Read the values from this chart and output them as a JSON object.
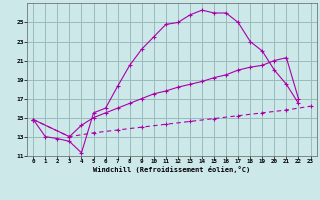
{
  "xlabel": "Windchill (Refroidissement éolien,°C)",
  "ylabel": "",
  "bg_color": "#cce8e8",
  "grid_color": "#99bbbb",
  "line_color": "#aa00aa",
  "xlim": [
    -0.5,
    23.5
  ],
  "ylim": [
    11,
    27
  ],
  "xticks": [
    0,
    1,
    2,
    3,
    4,
    5,
    6,
    7,
    8,
    9,
    10,
    11,
    12,
    13,
    14,
    15,
    16,
    17,
    18,
    19,
    20,
    21,
    22,
    23
  ],
  "yticks": [
    11,
    13,
    15,
    17,
    19,
    21,
    23,
    25
  ],
  "line1_x": [
    0,
    1,
    2,
    3,
    4,
    5,
    6,
    7,
    8,
    9,
    10,
    11,
    12,
    13,
    14,
    15,
    16,
    17,
    18,
    19,
    20,
    21,
    22
  ],
  "line1_y": [
    14.8,
    13.0,
    12.8,
    12.5,
    11.3,
    15.5,
    16.0,
    18.3,
    20.5,
    22.2,
    23.5,
    24.8,
    25.0,
    25.8,
    26.3,
    26.0,
    26.0,
    25.0,
    23.0,
    22.0,
    20.0,
    18.5,
    16.5
  ],
  "line2_x": [
    0,
    3,
    4,
    5,
    6,
    7,
    8,
    9,
    10,
    11,
    12,
    13,
    14,
    15,
    16,
    17,
    18,
    19,
    20,
    21,
    22
  ],
  "line2_y": [
    14.8,
    13.0,
    14.2,
    15.0,
    15.5,
    16.0,
    16.5,
    17.0,
    17.5,
    17.8,
    18.2,
    18.5,
    18.8,
    19.2,
    19.5,
    20.0,
    20.3,
    20.5,
    21.0,
    21.3,
    17.0
  ],
  "line3_x": [
    0,
    3,
    5,
    7,
    9,
    11,
    13,
    15,
    17,
    19,
    21,
    23
  ],
  "line3_y": [
    14.8,
    13.0,
    13.4,
    13.7,
    14.0,
    14.3,
    14.6,
    14.9,
    15.2,
    15.5,
    15.8,
    16.2
  ]
}
